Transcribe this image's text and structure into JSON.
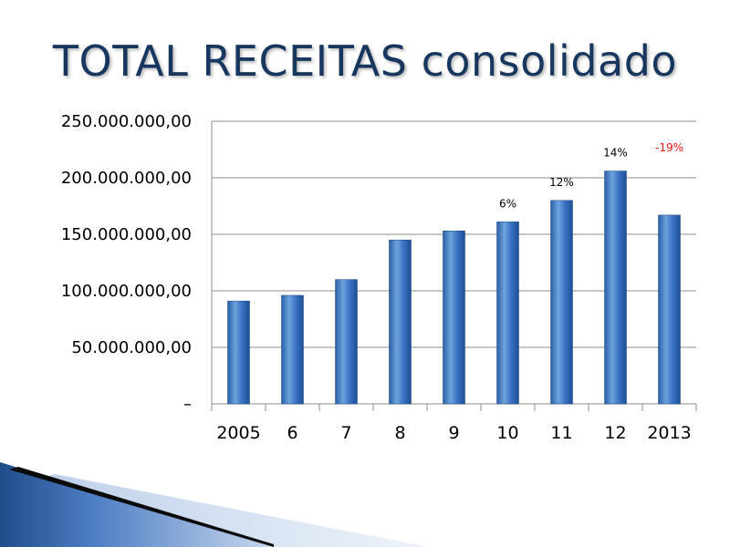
{
  "slide": {
    "title": "TOTAL RECEITAS consolidado"
  },
  "colors": {
    "title": "#17375e",
    "bar_light": "#6fa3de",
    "bar_mid": "#3a73c4",
    "bar_dark": "#1c4f94",
    "grid": "#8c8c8c",
    "label": "#000000",
    "negative_label": "#e11414"
  },
  "chart_data": {
    "type": "bar",
    "title": "",
    "xlabel": "",
    "ylabel": "",
    "categories": [
      "2005",
      "6",
      "7",
      "8",
      "9",
      "10",
      "11",
      "12",
      "2013"
    ],
    "values": [
      91000000,
      96000000,
      110000000,
      145000000,
      153000000,
      161000000,
      180000000,
      206000000,
      167000000
    ],
    "ylim": [
      0,
      250000000
    ],
    "yticks": [
      0,
      50000000,
      100000000,
      150000000,
      200000000,
      250000000
    ],
    "ytick_labels": [
      "–",
      "50.000.000,00",
      "100.000.000,00",
      "150.000.000,00",
      "200.000.000,00",
      "250.000.000,00"
    ],
    "grid": true,
    "legend": "none",
    "annotations": [
      {
        "category": "10",
        "text": "6%",
        "negative": false
      },
      {
        "category": "11",
        "text": "12%",
        "negative": false
      },
      {
        "category": "12",
        "text": "14%",
        "negative": false
      },
      {
        "category": "2013",
        "text": "-19%",
        "negative": true
      }
    ]
  }
}
